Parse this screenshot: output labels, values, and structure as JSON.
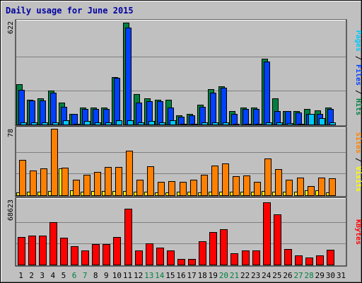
{
  "chart_data": {
    "type": "bar",
    "title": "Daily usage for June 2015",
    "categories": [
      "1",
      "2",
      "3",
      "4",
      "5",
      "6",
      "7",
      "8",
      "9",
      "10",
      "11",
      "12",
      "13",
      "14",
      "15",
      "16",
      "17",
      "18",
      "19",
      "20",
      "21",
      "22",
      "23",
      "24",
      "25",
      "26",
      "27",
      "28",
      "29",
      "30",
      "31"
    ],
    "weekend_days": [
      6,
      7,
      13,
      14,
      20,
      21,
      27,
      28
    ],
    "panels": [
      {
        "name": "hits-files-pages",
        "max_label": "622",
        "ylim": [
          0,
          622
        ],
        "side_label": [
          {
            "text": "Pages",
            "color": "#00c8f8"
          },
          {
            "text": " / ",
            "color": "#000000"
          },
          {
            "text": "Files",
            "color": "#0040ff"
          },
          {
            "text": " / ",
            "color": "#000000"
          },
          {
            "text": "Hits",
            "color": "#008040"
          }
        ],
        "series": [
          {
            "name": "Hits",
            "color": "#008040",
            "values": [
              248,
              152,
              160,
              208,
              136,
              64,
              104,
              104,
              104,
              288,
              622,
              184,
              160,
              152,
              152,
              56,
              64,
              120,
              216,
              232,
              80,
              104,
              104,
              400,
              160,
              80,
              80,
              96,
              88,
              104,
              0
            ]
          },
          {
            "name": "Files",
            "color": "#0040ff",
            "values": [
              212,
              148,
              148,
              196,
              108,
              64,
              96,
              96,
              96,
              284,
              592,
              136,
              144,
              144,
              104,
              48,
              56,
              108,
              196,
              224,
              64,
              96,
              96,
              384,
              80,
              80,
              72,
              64,
              64,
              96,
              0
            ]
          },
          {
            "name": "Pages",
            "color": "#00c8f8",
            "values": [
              12,
              12,
              12,
              12,
              28,
              4,
              20,
              12,
              12,
              24,
              24,
              12,
              20,
              12,
              28,
              4,
              4,
              12,
              12,
              12,
              4,
              4,
              4,
              12,
              12,
              8,
              4,
              64,
              40,
              12,
              0
            ]
          }
        ]
      },
      {
        "name": "visits-sites",
        "max_label": "78",
        "ylim": [
          0,
          78
        ],
        "side_label": [
          {
            "text": "Sites",
            "color": "#ff8000"
          },
          {
            "text": " / ",
            "color": "#000000"
          },
          {
            "text": "Visits",
            "color": "#ffff00"
          }
        ],
        "series": [
          {
            "name": "Visits",
            "color": "#ffff00",
            "values": [
              3,
              4,
              4,
              5,
              32,
              6,
              4,
              5,
              5,
              5,
              5,
              4,
              4,
              3,
              3,
              4,
              4,
              3,
              4,
              4,
              4,
              4,
              4,
              5,
              4,
              4,
              4,
              6,
              6,
              3,
              0
            ]
          },
          {
            "name": "Sites",
            "color": "#ff8000",
            "values": [
              42,
              30,
              32,
              80,
              33,
              19,
              25,
              28,
              34,
              34,
              53,
              19,
              35,
              16,
              17,
              16,
              19,
              25,
              36,
              38,
              23,
              24,
              16,
              44,
              31,
              19,
              21,
              11,
              21,
              20,
              0
            ]
          }
        ]
      },
      {
        "name": "kbytes",
        "max_label": "68623",
        "ylim": [
          0,
          68623
        ],
        "side_label": [
          {
            "text": "KBytes",
            "color": "#ff0000"
          }
        ],
        "series": [
          {
            "name": "KBytes",
            "color": "#ff0000",
            "values": [
              30000,
              31000,
              31000,
              46000,
              29000,
              20000,
              15000,
              22000,
              22000,
              30000,
              60500,
              15000,
              23000,
              18000,
              15000,
              6000,
              6000,
              25000,
              35000,
              38000,
              12000,
              15000,
              15000,
              67000,
              54000,
              17000,
              10000,
              8000,
              10000,
              16000,
              0
            ]
          }
        ]
      }
    ]
  }
}
